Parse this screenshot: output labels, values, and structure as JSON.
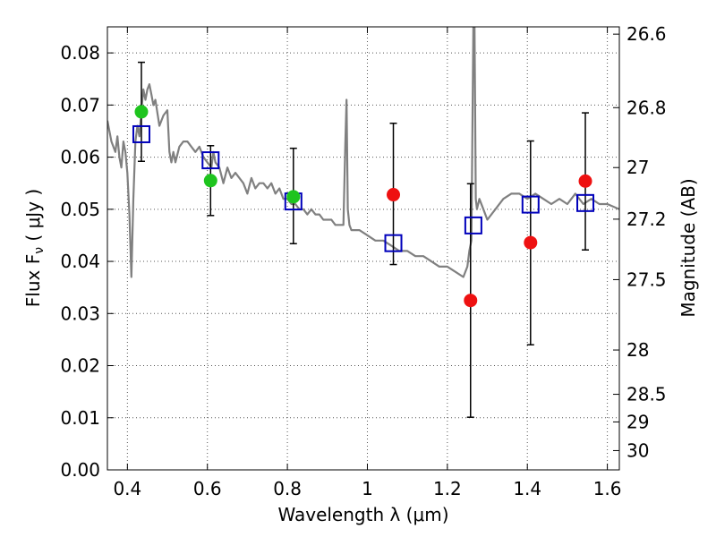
{
  "chart_data": {
    "type": "scatter",
    "xlabel": "Wavelength  λ (μm)",
    "ylabel": "Flux  F",
    "ylabel_subscript": "ν",
    "ylabel_unit": " ( μJy )",
    "ylabel_right": "Magnitude (AB)",
    "xlim": [
      0.35,
      1.63
    ],
    "ylim": [
      0.0,
      0.085
    ],
    "x_ticks": [
      0.4,
      0.6,
      0.8,
      1.0,
      1.2,
      1.4,
      1.6
    ],
    "x_tick_labels": [
      "0.4",
      "0.6",
      "0.8",
      "1",
      "1.2",
      "1.4",
      "1.6"
    ],
    "y_ticks": [
      0.0,
      0.01,
      0.02,
      0.03,
      0.04,
      0.05,
      0.06,
      0.07,
      0.08
    ],
    "y_tick_labels": [
      "0.00",
      "0.01",
      "0.02",
      "0.03",
      "0.04",
      "0.05",
      "0.06",
      "0.07",
      "0.08"
    ],
    "right_ticks": [
      {
        "label": "26.6",
        "flux": 0.0836
      },
      {
        "label": "26.8",
        "flux": 0.0695
      },
      {
        "label": "27",
        "flux": 0.058
      },
      {
        "label": "27.2",
        "flux": 0.0481
      },
      {
        "label": "27.5",
        "flux": 0.0365
      },
      {
        "label": "28",
        "flux": 0.023
      },
      {
        "label": "28.5",
        "flux": 0.0145
      },
      {
        "label": "29",
        "flux": 0.0092
      },
      {
        "label": "30",
        "flux": 0.0037
      }
    ],
    "grid": true,
    "colors": {
      "sed": "#808080",
      "model": "#0000bb",
      "green": "#1ec41e",
      "red": "#ee1111",
      "errorbar": "#000000",
      "grid": "#555555"
    },
    "series": [
      {
        "marker": "line",
        "color_key": "sed",
        "x": [
          0.35,
          0.36,
          0.37,
          0.375,
          0.38,
          0.385,
          0.39,
          0.395,
          0.4,
          0.405,
          0.41,
          0.415,
          0.42,
          0.425,
          0.43,
          0.435,
          0.44,
          0.445,
          0.45,
          0.455,
          0.46,
          0.465,
          0.47,
          0.48,
          0.49,
          0.5,
          0.505,
          0.51,
          0.515,
          0.52,
          0.53,
          0.54,
          0.55,
          0.56,
          0.57,
          0.58,
          0.59,
          0.6,
          0.61,
          0.615,
          0.62,
          0.63,
          0.64,
          0.65,
          0.66,
          0.67,
          0.68,
          0.69,
          0.7,
          0.71,
          0.72,
          0.73,
          0.74,
          0.75,
          0.76,
          0.77,
          0.78,
          0.79,
          0.8,
          0.81,
          0.82,
          0.83,
          0.84,
          0.85,
          0.86,
          0.87,
          0.88,
          0.89,
          0.9,
          0.91,
          0.92,
          0.93,
          0.94,
          0.945,
          0.948,
          0.951,
          0.955,
          0.96,
          0.98,
          1.0,
          1.02,
          1.04,
          1.06,
          1.08,
          1.1,
          1.12,
          1.14,
          1.16,
          1.18,
          1.2,
          1.22,
          1.24,
          1.25,
          1.255,
          1.26,
          1.265,
          1.268,
          1.271,
          1.274,
          1.28,
          1.29,
          1.3,
          1.32,
          1.34,
          1.36,
          1.38,
          1.4,
          1.42,
          1.44,
          1.46,
          1.48,
          1.5,
          1.52,
          1.54,
          1.56,
          1.58,
          1.6,
          1.63
        ],
        "y": [
          0.067,
          0.063,
          0.061,
          0.064,
          0.06,
          0.058,
          0.063,
          0.061,
          0.057,
          0.049,
          0.037,
          0.052,
          0.063,
          0.066,
          0.064,
          0.069,
          0.073,
          0.071,
          0.073,
          0.074,
          0.072,
          0.07,
          0.071,
          0.066,
          0.068,
          0.069,
          0.061,
          0.059,
          0.061,
          0.059,
          0.062,
          0.063,
          0.063,
          0.062,
          0.061,
          0.062,
          0.06,
          0.059,
          0.058,
          0.061,
          0.059,
          0.058,
          0.055,
          0.058,
          0.056,
          0.057,
          0.056,
          0.055,
          0.053,
          0.056,
          0.054,
          0.055,
          0.055,
          0.054,
          0.055,
          0.053,
          0.054,
          0.052,
          0.052,
          0.051,
          0.051,
          0.05,
          0.05,
          0.049,
          0.05,
          0.049,
          0.049,
          0.048,
          0.048,
          0.048,
          0.047,
          0.047,
          0.047,
          0.063,
          0.071,
          0.05,
          0.047,
          0.046,
          0.046,
          0.045,
          0.044,
          0.044,
          0.043,
          0.042,
          0.042,
          0.041,
          0.041,
          0.04,
          0.039,
          0.039,
          0.038,
          0.037,
          0.039,
          0.042,
          0.044,
          0.085,
          0.085,
          0.052,
          0.05,
          0.052,
          0.05,
          0.048,
          0.05,
          0.052,
          0.053,
          0.053,
          0.052,
          0.053,
          0.052,
          0.051,
          0.052,
          0.051,
          0.053,
          0.051,
          0.052,
          0.051,
          0.051,
          0.05
        ]
      },
      {
        "marker": "open-square",
        "color_key": "model",
        "x": [
          0.435,
          0.608,
          0.815,
          1.065,
          1.265,
          1.408,
          1.545
        ],
        "y": [
          0.0644,
          0.0594,
          0.0515,
          0.0435,
          0.0469,
          0.0509,
          0.0512
        ]
      },
      {
        "marker": "filled-circle",
        "color_key": "green",
        "x": [
          0.435,
          0.608,
          0.815
        ],
        "y": [
          0.0687,
          0.0555,
          0.0524
        ],
        "yerr_low": [
          0.0592,
          0.0488,
          0.0434
        ],
        "yerr_high": [
          0.0782,
          0.0622,
          0.0617
        ]
      },
      {
        "marker": "filled-circle",
        "color_key": "red",
        "x": [
          1.065,
          1.258,
          1.408,
          1.545
        ],
        "y": [
          0.0528,
          0.0325,
          0.0436,
          0.0554
        ],
        "yerr_low": [
          0.0394,
          0.0101,
          0.024,
          0.0422
        ],
        "yerr_high": [
          0.0665,
          0.0549,
          0.0631,
          0.0685
        ]
      }
    ]
  }
}
